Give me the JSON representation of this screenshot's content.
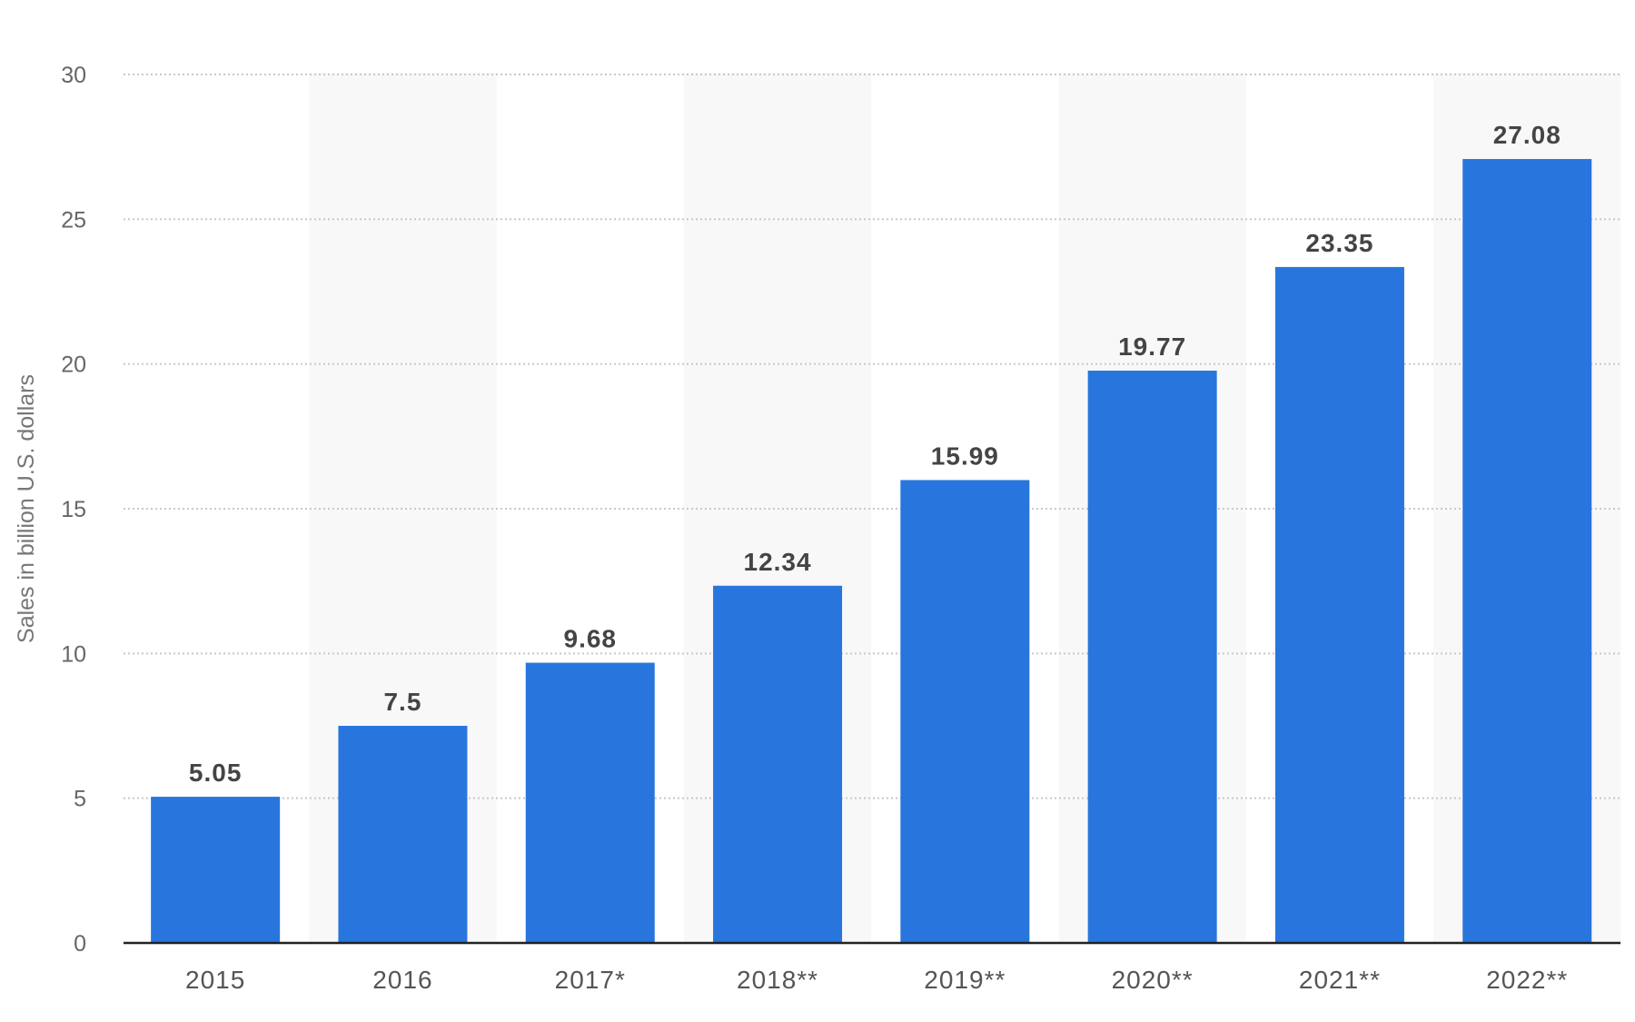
{
  "chart_data": {
    "type": "bar",
    "categories": [
      "2015",
      "2016",
      "2017*",
      "2018**",
      "2019**",
      "2020**",
      "2021**",
      "2022**"
    ],
    "series": [
      {
        "values": [
          5.05,
          7.5,
          9.68,
          12.34,
          15.99,
          19.77,
          23.35,
          27.08
        ]
      }
    ],
    "data_labels": [
      "5.05",
      "7.5",
      "9.68",
      "12.34",
      "15.99",
      "19.77",
      "23.35",
      "27.08"
    ],
    "ylabel": "Sales in billion U.S. dollars",
    "xlabel": "",
    "ylim": [
      0,
      30
    ],
    "yticks": [
      "0",
      "5",
      "10",
      "15",
      "20",
      "25",
      "30"
    ],
    "grid": true,
    "grid_style": "dotted",
    "alternating_column_shading": true,
    "colors": {
      "bar": "#2876dd",
      "column_shade": "#f8f8f8",
      "gridline": "#c8c8c8",
      "baseline": "#222222"
    }
  }
}
